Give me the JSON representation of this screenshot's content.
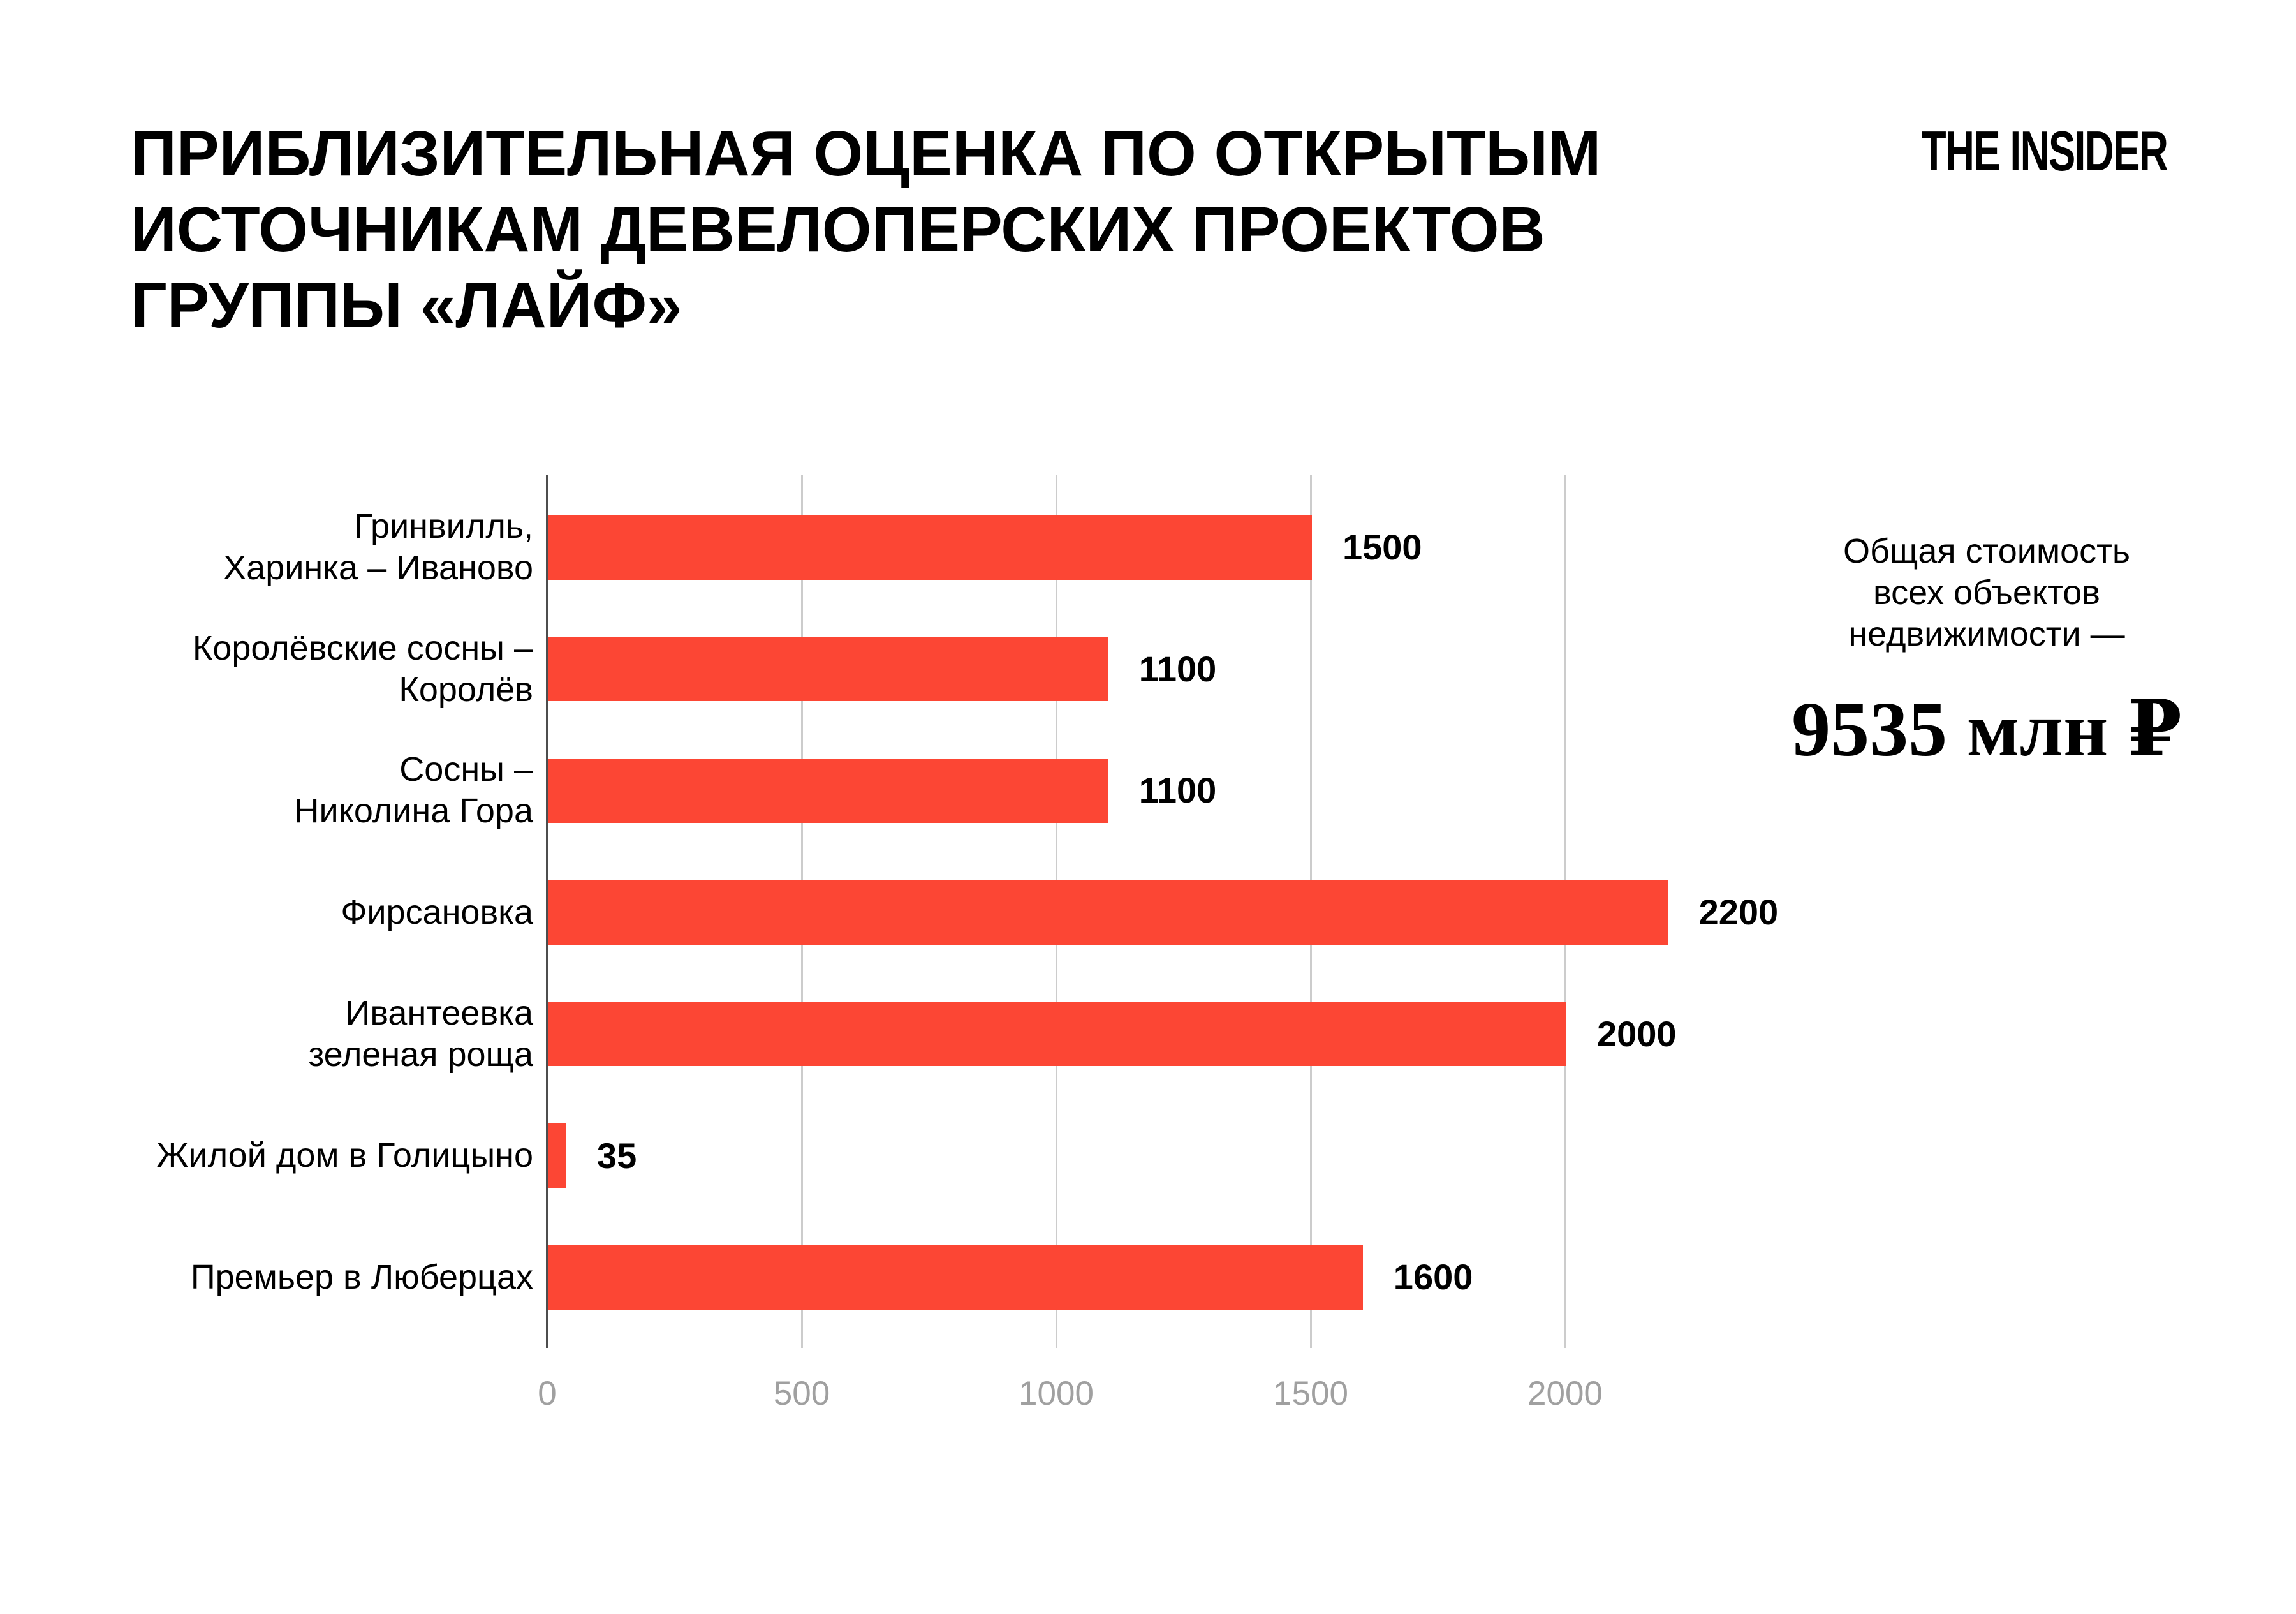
{
  "page": {
    "background": "#ffffff"
  },
  "header": {
    "title_lines": [
      "ПРИБЛИЗИТЕЛЬНАЯ ОЦЕНКА ПО ОТКРЫТЫМ",
      "ИСТОЧНИКАМ ДЕВЕЛОПЕРСКИХ ПРОЕКТОВ",
      "ГРУППЫ «ЛАЙФ»"
    ],
    "logo": "THE INSIDER"
  },
  "chart_data": {
    "type": "bar",
    "orientation": "horizontal",
    "title": "",
    "xlabel": "",
    "ylabel": "",
    "categories": [
      "Гринвилль, Харинка – Иваново",
      "Королёвские сосны – Королёв",
      "Сосны – Николина Гора",
      "Фирсановка",
      "Ивантеевка зеленая роща",
      "Жилой дом в Голицыно",
      "Премьер в Люберцах"
    ],
    "category_lines": [
      [
        "Гринвилль,",
        "Харинка – Иваново"
      ],
      [
        "Королёвские сосны –",
        "Королёв"
      ],
      [
        "Сосны –",
        "Николина Гора"
      ],
      [
        "Фирсановка"
      ],
      [
        "Ивантеевка",
        "зеленая роща"
      ],
      [
        "Жилой дом в Голицыно"
      ],
      [
        "Премьер в Люберцах"
      ]
    ],
    "values": [
      1500,
      1100,
      1100,
      2200,
      2000,
      35,
      1600
    ],
    "value_labels": [
      "1500",
      "1100",
      "1100",
      "2200",
      "2000",
      "35",
      "1600"
    ],
    "xlim": [
      0,
      2000
    ],
    "x_ticks": [
      0,
      500,
      1000,
      1500,
      2000
    ],
    "grid": "vertical-gridlines-on",
    "legend": "none"
  },
  "chart_style": {
    "bar_color": "#fc4634",
    "axis_color": "#4d4d4d",
    "gridline_color": "#cccccc",
    "tick_label_color": "#a0a0a0"
  },
  "annotation": {
    "lines": [
      "Общая стоимость",
      "всех объектов",
      "недвижимости —"
    ],
    "total": "9535 млн ₽"
  }
}
